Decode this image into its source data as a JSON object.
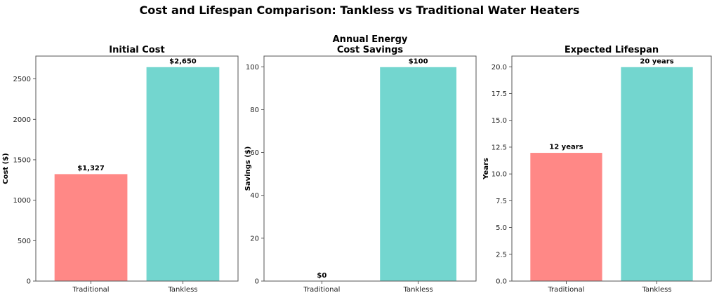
{
  "suptitle": "Cost and Lifespan Comparison: Tankless vs Traditional Water Heaters",
  "colors": {
    "traditional": "#FF8886",
    "tankless": "#73D6CF"
  },
  "chart_data": [
    {
      "type": "bar",
      "title": "Initial Cost",
      "categories": [
        "Traditional",
        "Tankless"
      ],
      "values": [
        1327,
        2650
      ],
      "data_labels": [
        "$1,327",
        "$2,650"
      ],
      "ylabel": "Cost ($)",
      "ylim": [
        0,
        2782.5
      ],
      "yticks": [
        0,
        500,
        1000,
        1500,
        2000,
        2500
      ],
      "ytick_labels": [
        "0",
        "500",
        "1000",
        "1500",
        "2000",
        "2500"
      ]
    },
    {
      "type": "bar",
      "title": "Annual Energy\nCost Savings",
      "title_lines": [
        "Annual Energy",
        "Cost Savings"
      ],
      "categories": [
        "Traditional",
        "Tankless"
      ],
      "values": [
        0,
        100
      ],
      "data_labels": [
        "$0",
        "$100"
      ],
      "ylabel": "Savings ($)",
      "ylim": [
        0,
        105
      ],
      "yticks": [
        0,
        20,
        40,
        60,
        80,
        100
      ],
      "ytick_labels": [
        "0",
        "20",
        "40",
        "60",
        "80",
        "100"
      ]
    },
    {
      "type": "bar",
      "title": "Expected Lifespan",
      "categories": [
        "Traditional",
        "Tankless"
      ],
      "values": [
        12,
        20
      ],
      "data_labels": [
        "12 years",
        "20 years"
      ],
      "ylabel": "Years",
      "ylim": [
        0,
        21
      ],
      "yticks": [
        0,
        2.5,
        5,
        7.5,
        10,
        12.5,
        15,
        17.5,
        20
      ],
      "ytick_labels": [
        "0.0",
        "2.5",
        "5.0",
        "7.5",
        "10.0",
        "12.5",
        "15.0",
        "17.5",
        "20.0"
      ]
    }
  ]
}
